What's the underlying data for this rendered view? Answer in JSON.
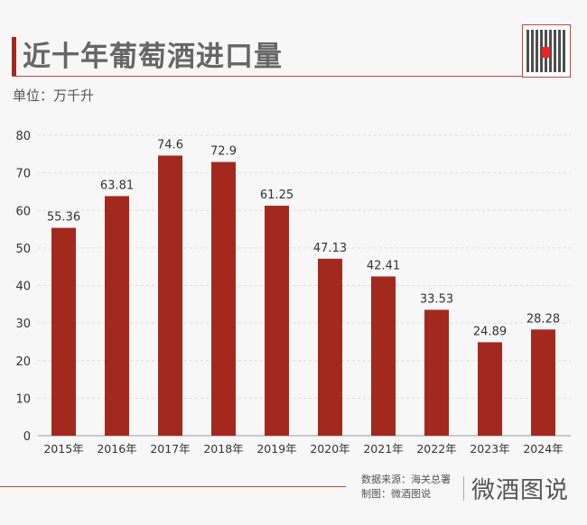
{
  "header": {
    "title": "近十年葡萄酒进口量",
    "unit": "单位：万千升"
  },
  "footer": {
    "source": "数据来源：海关总署",
    "credit": "制图：微酒图说",
    "logo": "微酒图说"
  },
  "colors": {
    "bar": "#a3291f",
    "accent": "#c8453a"
  },
  "chart_data": {
    "type": "bar",
    "categories": [
      "2015年",
      "2016年",
      "2017年",
      "2018年",
      "2019年",
      "2020年",
      "2021年",
      "2022年",
      "2023年",
      "2024年"
    ],
    "values": [
      55.36,
      63.81,
      74.6,
      72.9,
      61.25,
      47.13,
      42.41,
      33.53,
      24.89,
      28.28
    ],
    "labels": [
      "55.36",
      "63.81",
      "74.6",
      "72.9",
      "61.25",
      "47.13",
      "42.41",
      "33.53",
      "24.89",
      "28.28"
    ],
    "yticks": [
      "0",
      "10",
      "20",
      "30",
      "40",
      "50",
      "60",
      "70",
      "80"
    ],
    "ylim": [
      0,
      80
    ],
    "grid": true,
    "xlabel": "",
    "ylabel": ""
  }
}
